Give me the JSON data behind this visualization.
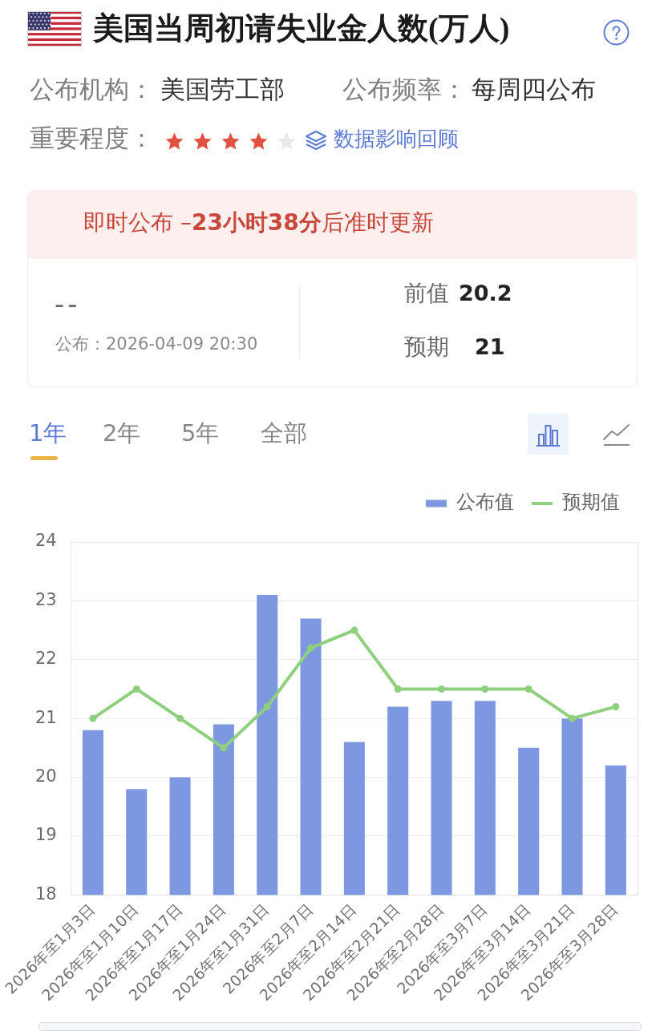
{
  "chart_data": {
    "type": "bar",
    "title": "美国当周初请失业金人数(万人)",
    "annotations": [
      "公布机构：",
      "美国劳工部",
      "公布频率：",
      "每周四公布",
      "重要程度：",
      "数据影响回顾",
      "即时公布 – ",
      "23小时38分",
      "后准时更新",
      "--",
      "公布：2026-04-09 20:30",
      "前值",
      "20.2",
      "预期",
      "21",
      "1年",
      "2年",
      "5年",
      "全部"
    ],
    "categories": [
      "2026年至1月3日",
      "2026年至1月10日",
      "2026年至1月17日",
      "2026年至1月24日",
      "2026年至1月31日",
      "2026年至2月7日",
      "2026年至2月14日",
      "2026年至2月21日",
      "2026年至2月28日",
      "2026年至3月7日",
      "2026年至3月14日",
      "2026年至3月21日",
      "2026年至3月28日"
    ],
    "series": [
      {
        "name": "公布值",
        "color": "#7d98e0",
        "values": [
          20.8,
          19.8,
          20.0,
          20.9,
          23.1,
          22.7,
          20.6,
          21.2,
          21.3,
          21.3,
          20.5,
          21.0,
          20.2
        ]
      },
      {
        "name": "预期值",
        "type": "line",
        "color": "#8ed07e",
        "values": [
          21.0,
          21.5,
          21.0,
          20.5,
          21.2,
          22.2,
          22.5,
          21.5,
          21.5,
          21.5,
          21.5,
          21.0,
          21.2
        ]
      }
    ],
    "ylim": [
      18,
      24
    ],
    "yticks": [
      18,
      19,
      20,
      21,
      22,
      23,
      24
    ],
    "grid": "y",
    "legend": "top right",
    "marker": "circle"
  }
}
